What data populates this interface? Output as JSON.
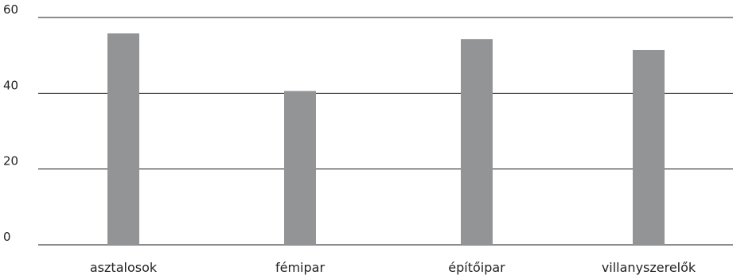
{
  "colors": {
    "bar": "#939496",
    "grid": "#1a1a1a",
    "text": "#222222"
  },
  "chart_data": {
    "type": "bar",
    "categories": [
      "asztalosok",
      "fémipar",
      "építőipar",
      "villanyszerelők"
    ],
    "values": [
      55.8,
      40.6,
      54.3,
      51.4
    ],
    "yticks": [
      "0",
      "20",
      "40",
      "60"
    ],
    "ylim": [
      0,
      60
    ],
    "grid": true,
    "legend": false
  }
}
